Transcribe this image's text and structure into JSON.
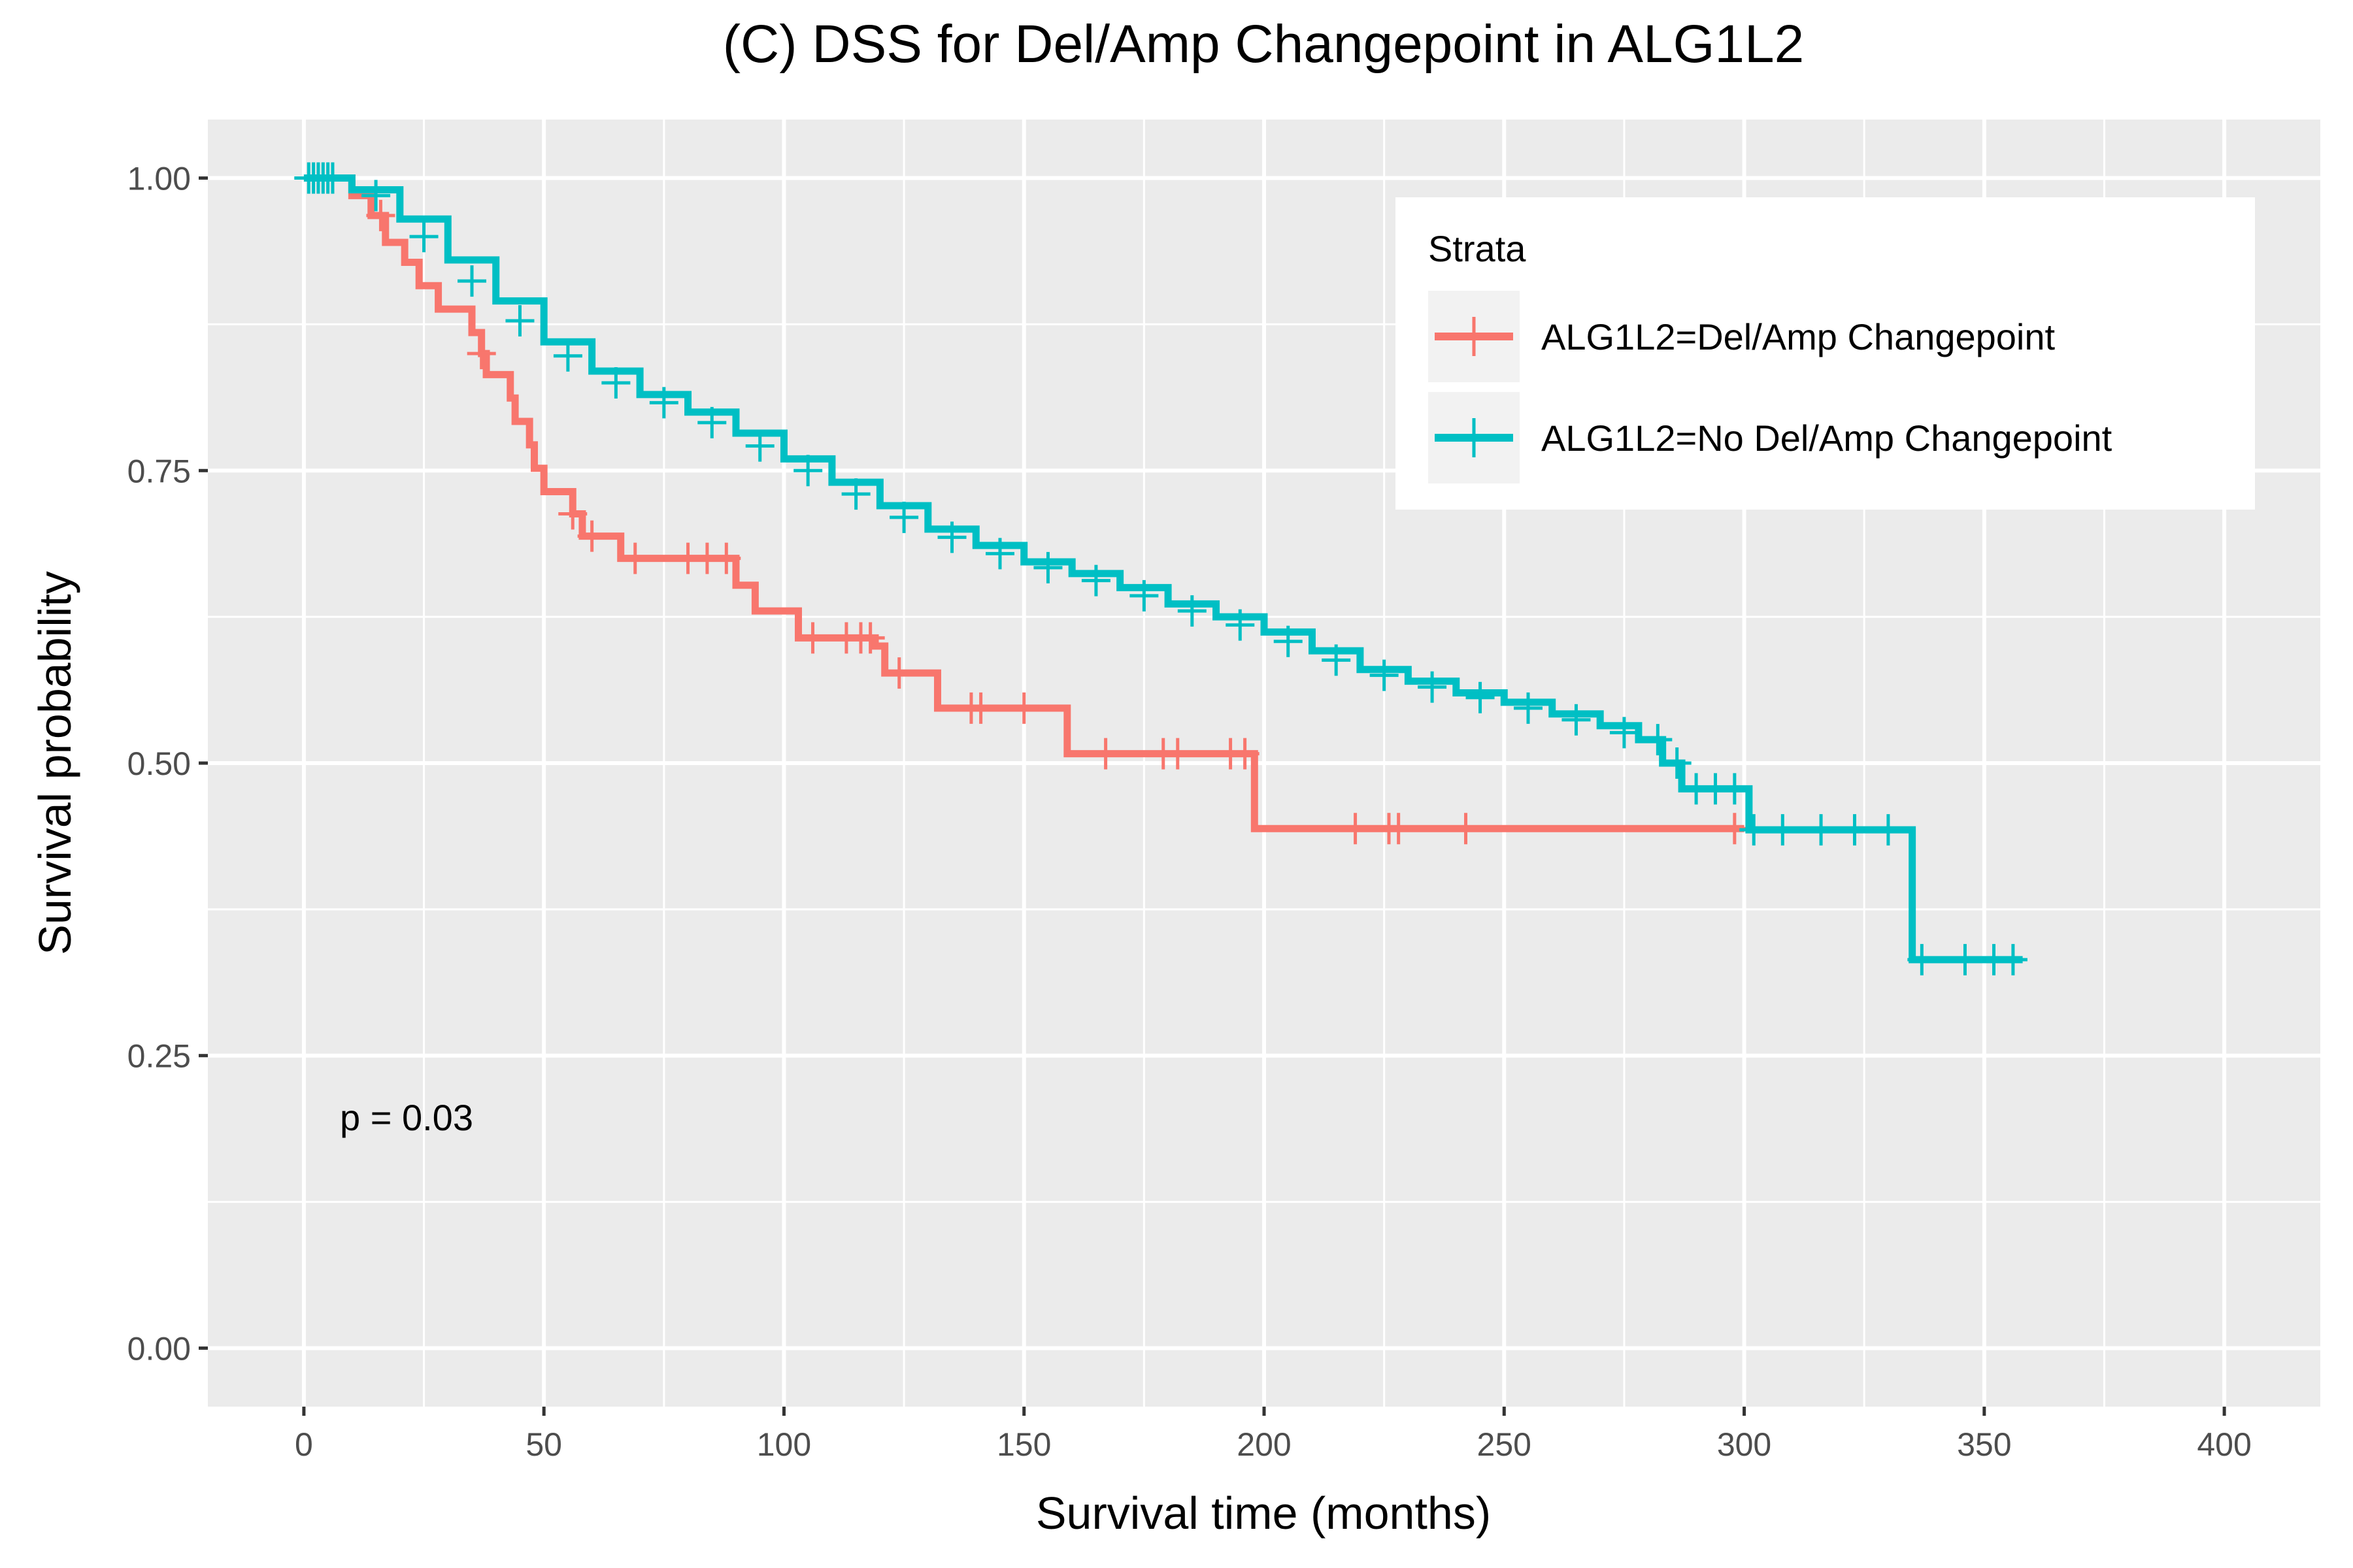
{
  "chart_data": {
    "type": "line",
    "subtype": "kaplan-meier step",
    "title": "(C) DSS for Del/Amp Changepoint in ALG1L2",
    "xlabel": "Survival time (months)",
    "ylabel": "Survival probability",
    "xlim": [
      -20,
      420
    ],
    "ylim": [
      -0.05,
      1.05
    ],
    "x_ticks": [
      0,
      50,
      100,
      150,
      200,
      250,
      300,
      350,
      400
    ],
    "x_tick_labels": [
      "0",
      "50",
      "100",
      "150",
      "200",
      "250",
      "300",
      "350",
      "400"
    ],
    "y_ticks": [
      0,
      0.25,
      0.5,
      0.75,
      1.0
    ],
    "y_tick_labels": [
      "0.00",
      "0.25",
      "0.50",
      "0.75",
      "1.00"
    ],
    "grid": true,
    "background": "#ebebeb",
    "annotation": "p = 0.03",
    "legend": {
      "title": "Strata",
      "position": "top-right",
      "entries": [
        "ALG1L2=Del/Amp Changepoint",
        "ALG1L2=No Del/Amp Changepoint"
      ]
    },
    "series": [
      {
        "name": "ALG1L2=Del/Amp Changepoint",
        "color": "#F8766D",
        "steps": [
          [
            0,
            1.0
          ],
          [
            10,
            0.985
          ],
          [
            14,
            0.968
          ],
          [
            17,
            0.945
          ],
          [
            21,
            0.928
          ],
          [
            24,
            0.908
          ],
          [
            28,
            0.888
          ],
          [
            35,
            0.868
          ],
          [
            37,
            0.85
          ],
          [
            38,
            0.832
          ],
          [
            43,
            0.812
          ],
          [
            44,
            0.792
          ],
          [
            47,
            0.772
          ],
          [
            48,
            0.752
          ],
          [
            50,
            0.732
          ],
          [
            56,
            0.713
          ],
          [
            58,
            0.694
          ],
          [
            66,
            0.675
          ],
          [
            90,
            0.652
          ],
          [
            94,
            0.63
          ],
          [
            103,
            0.607
          ],
          [
            119,
            0.6
          ],
          [
            121,
            0.577
          ],
          [
            132,
            0.547
          ],
          [
            159,
            0.508
          ],
          [
            198,
            0.444
          ],
          [
            300,
            0.444
          ]
        ],
        "censored": [
          [
            16,
            0.968
          ],
          [
            37,
            0.85
          ],
          [
            56,
            0.713
          ],
          [
            60,
            0.694
          ],
          [
            69,
            0.675
          ],
          [
            80,
            0.675
          ],
          [
            84,
            0.675
          ],
          [
            88,
            0.675
          ],
          [
            106,
            0.607
          ],
          [
            113,
            0.607
          ],
          [
            116,
            0.607
          ],
          [
            118,
            0.607
          ],
          [
            124,
            0.577
          ],
          [
            139,
            0.547
          ],
          [
            141,
            0.547
          ],
          [
            150,
            0.547
          ],
          [
            167,
            0.508
          ],
          [
            179,
            0.508
          ],
          [
            182,
            0.508
          ],
          [
            193,
            0.508
          ],
          [
            196,
            0.508
          ],
          [
            219,
            0.444
          ],
          [
            226,
            0.444
          ],
          [
            228,
            0.444
          ],
          [
            242,
            0.444
          ],
          [
            298,
            0.444
          ]
        ]
      },
      {
        "name": "ALG1L2=No Del/Amp Changepoint",
        "color": "#00BFC4",
        "steps": [
          [
            0,
            1.0
          ],
          [
            10,
            0.99
          ],
          [
            20,
            0.965
          ],
          [
            30,
            0.93
          ],
          [
            40,
            0.895
          ],
          [
            50,
            0.86
          ],
          [
            60,
            0.835
          ],
          [
            70,
            0.815
          ],
          [
            80,
            0.8
          ],
          [
            90,
            0.782
          ],
          [
            100,
            0.76
          ],
          [
            110,
            0.74
          ],
          [
            120,
            0.72
          ],
          [
            130,
            0.7
          ],
          [
            140,
            0.686
          ],
          [
            150,
            0.672
          ],
          [
            160,
            0.662
          ],
          [
            170,
            0.65
          ],
          [
            180,
            0.636
          ],
          [
            190,
            0.625
          ],
          [
            200,
            0.612
          ],
          [
            210,
            0.596
          ],
          [
            220,
            0.58
          ],
          [
            230,
            0.57
          ],
          [
            240,
            0.56
          ],
          [
            250,
            0.552
          ],
          [
            260,
            0.542
          ],
          [
            270,
            0.532
          ],
          [
            278,
            0.52
          ],
          [
            283,
            0.5
          ],
          [
            287,
            0.478
          ],
          [
            301,
            0.443
          ],
          [
            335,
            0.332
          ],
          [
            358,
            0.332
          ]
        ],
        "censored": [
          [
            1,
            1.0
          ],
          [
            2,
            1.0
          ],
          [
            3,
            1.0
          ],
          [
            4,
            1.0
          ],
          [
            5,
            1.0
          ],
          [
            6,
            1.0
          ],
          [
            15,
            0.985
          ],
          [
            25,
            0.95
          ],
          [
            35,
            0.912
          ],
          [
            45,
            0.878
          ],
          [
            55,
            0.848
          ],
          [
            65,
            0.825
          ],
          [
            75,
            0.808
          ],
          [
            85,
            0.791
          ],
          [
            95,
            0.771
          ],
          [
            105,
            0.75
          ],
          [
            115,
            0.73
          ],
          [
            125,
            0.71
          ],
          [
            135,
            0.693
          ],
          [
            145,
            0.679
          ],
          [
            155,
            0.667
          ],
          [
            165,
            0.656
          ],
          [
            175,
            0.643
          ],
          [
            185,
            0.63
          ],
          [
            195,
            0.618
          ],
          [
            205,
            0.604
          ],
          [
            215,
            0.588
          ],
          [
            225,
            0.575
          ],
          [
            235,
            0.565
          ],
          [
            245,
            0.556
          ],
          [
            255,
            0.547
          ],
          [
            265,
            0.537
          ],
          [
            275,
            0.526
          ],
          [
            282,
            0.52
          ],
          [
            286,
            0.5
          ],
          [
            290,
            0.478
          ],
          [
            294,
            0.478
          ],
          [
            298,
            0.478
          ],
          [
            302,
            0.443
          ],
          [
            308,
            0.443
          ],
          [
            316,
            0.443
          ],
          [
            323,
            0.443
          ],
          [
            330,
            0.443
          ],
          [
            337,
            0.332
          ],
          [
            346,
            0.332
          ],
          [
            352,
            0.332
          ],
          [
            356,
            0.332
          ]
        ]
      }
    ]
  }
}
